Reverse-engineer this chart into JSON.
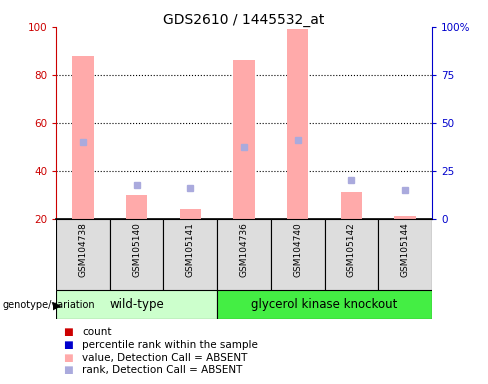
{
  "title": "GDS2610 / 1445532_at",
  "samples": [
    "GSM104738",
    "GSM105140",
    "GSM105141",
    "GSM104736",
    "GSM104740",
    "GSM105142",
    "GSM105144"
  ],
  "bar_heights_absent": [
    88,
    30,
    24,
    86,
    99,
    31,
    21
  ],
  "rank_dots_absent": [
    52,
    34,
    33,
    50,
    53,
    36,
    32
  ],
  "ylim_left": [
    20,
    100
  ],
  "yticks_left": [
    20,
    40,
    60,
    80,
    100
  ],
  "yticks_right": [
    0,
    25,
    50,
    75,
    100
  ],
  "yticklabels_right": [
    "0",
    "25",
    "50",
    "75",
    "100%"
  ],
  "bar_color_absent": "#ffaaaa",
  "dot_color_absent": "#aaaadd",
  "bar_color_present": "#cc0000",
  "dot_color_present": "#0000cc",
  "bar_width": 0.4,
  "group1_color": "#ccffcc",
  "group2_color": "#44ee44",
  "plot_bg_color": "#dddddd",
  "left_tick_color": "#cc0000",
  "right_tick_color": "#0000cc",
  "legend_labels": [
    "count",
    "percentile rank within the sample",
    "value, Detection Call = ABSENT",
    "rank, Detection Call = ABSENT"
  ],
  "legend_colors": [
    "#cc0000",
    "#0000cc",
    "#ffaaaa",
    "#aaaadd"
  ],
  "genotype_label": "genotype/variation",
  "wild_type_label": "wild-type",
  "knockout_label": "glycerol kinase knockout",
  "wt_count": 3,
  "ko_count": 4
}
